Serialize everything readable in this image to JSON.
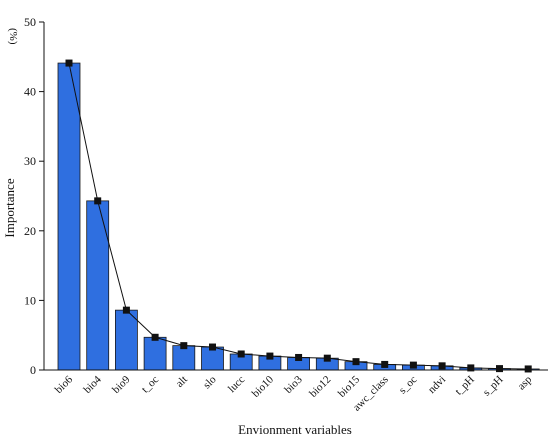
{
  "chart_data": {
    "type": "bar",
    "title": "",
    "xlabel": "Envionment variables",
    "ylabel": "Importance",
    "unit": "(%)",
    "ylim": [
      0,
      50
    ],
    "yticks": [
      0,
      10,
      20,
      30,
      40,
      50
    ],
    "grid": false,
    "categories": [
      "bio6",
      "bio4",
      "bio9",
      "t_oc",
      "alt",
      "slo",
      "lucc",
      "bio10",
      "bio3",
      "bio12",
      "bio15",
      "awc_class",
      "s_oc",
      "ndvi",
      "t_pH",
      "s_pH",
      "asp"
    ],
    "values": [
      44.1,
      24.3,
      8.6,
      4.7,
      3.5,
      3.3,
      2.3,
      2.0,
      1.8,
      1.7,
      1.2,
      0.8,
      0.7,
      0.6,
      0.3,
      0.2,
      0.15
    ],
    "line_overlay": true,
    "colors": {
      "bar_fill": "#2f6fe0",
      "bar_stroke": "#1a1a1a",
      "line": "#111111",
      "marker": "#111111"
    }
  }
}
